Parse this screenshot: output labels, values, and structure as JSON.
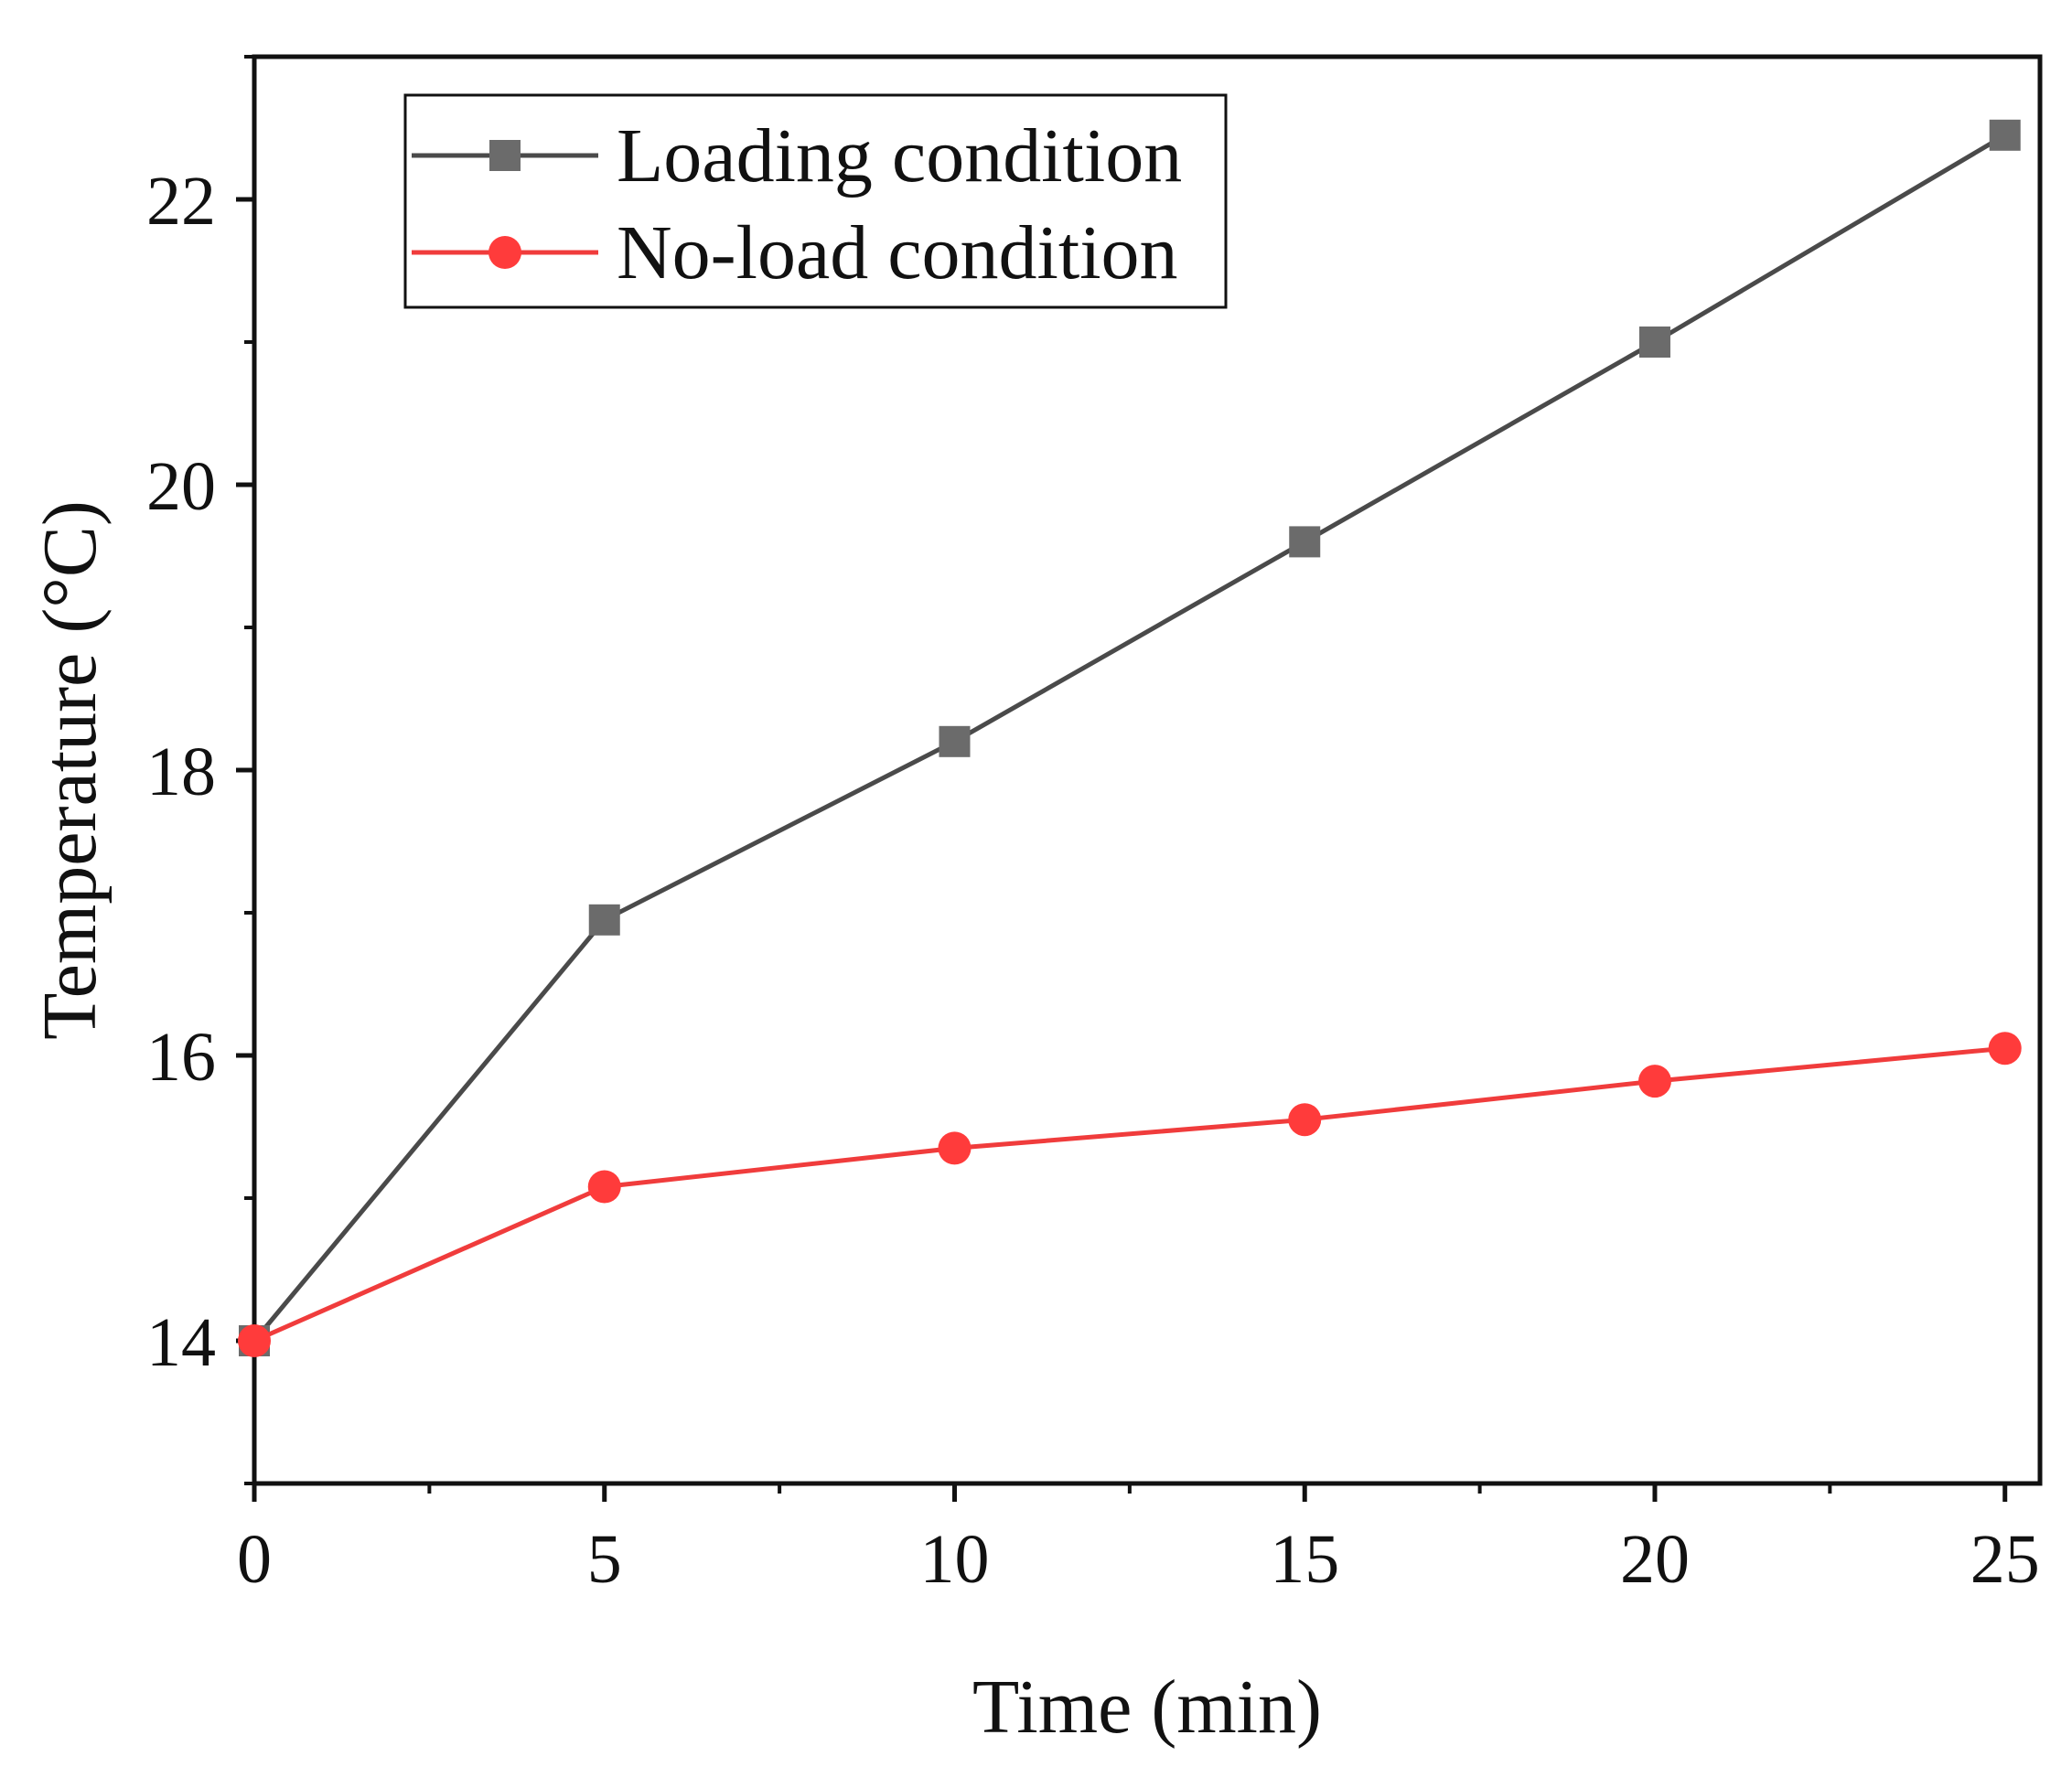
{
  "chart_data": {
    "type": "line",
    "title": "",
    "xlabel": "Time (min)",
    "ylabel": "Temperature (°C)",
    "x": [
      0,
      5,
      10,
      15,
      20,
      25
    ],
    "xlim": [
      0,
      25.5
    ],
    "ylim": [
      13,
      23
    ],
    "x_ticks": [
      0,
      5,
      10,
      15,
      20,
      25
    ],
    "x_tick_labels": [
      "0",
      "5",
      "10",
      "15",
      "20",
      "25"
    ],
    "x_minor_ticks": [
      2.5,
      7.5,
      12.5,
      17.5,
      22.5
    ],
    "y_ticks": [
      14,
      16,
      18,
      20,
      22
    ],
    "y_tick_labels": [
      "14",
      "16",
      "18",
      "20",
      "22"
    ],
    "y_minor_ticks": [
      13,
      15,
      17,
      19,
      21,
      23
    ],
    "grid": false,
    "legend_position": "top-left",
    "series": [
      {
        "name": "Loading condition",
        "marker": "square",
        "color": "#4a4a4a",
        "marker_color": "#6b6b6b",
        "values": [
          14.0,
          16.95,
          18.2,
          19.6,
          21.0,
          22.45
        ]
      },
      {
        "name": "No-load condition",
        "marker": "circle",
        "color": "#f03c3c",
        "marker_color": "#ff3b3b",
        "values": [
          14.0,
          15.08,
          15.35,
          15.55,
          15.82,
          16.05
        ]
      }
    ]
  }
}
